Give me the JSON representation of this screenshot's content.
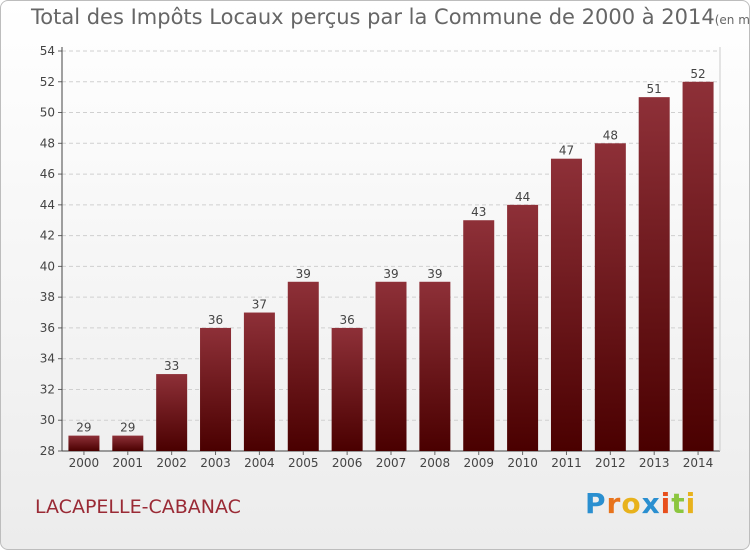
{
  "header": {
    "title": "Total des Impôts Locaux perçus par la Commune de 2000 à 2014",
    "unit": "(en milliers d'€)"
  },
  "footer": {
    "commune": "LACAPELLE-CABANAC",
    "brand_letters": [
      "P",
      "r",
      "o",
      "x",
      "i",
      "t",
      "i"
    ],
    "brand_colors": [
      "#2a8fd0",
      "#e8731c",
      "#e8b21c",
      "#2a8fd0",
      "#e84f1c",
      "#8cc63f",
      "#e8b21c"
    ]
  },
  "chart_data": {
    "type": "bar",
    "title": "Total des Impôts Locaux perçus par la Commune de 2000 à 2014",
    "unit": "(en milliers d'€)",
    "xlabel": "",
    "ylabel": "",
    "categories": [
      "2000",
      "2001",
      "2002",
      "2003",
      "2004",
      "2005",
      "2006",
      "2007",
      "2008",
      "2009",
      "2010",
      "2011",
      "2012",
      "2013",
      "2014"
    ],
    "values": [
      29,
      29,
      33,
      36,
      37,
      39,
      36,
      39,
      39,
      43,
      44,
      47,
      48,
      51,
      52
    ],
    "ylim": [
      28,
      54
    ],
    "yticks": [
      28,
      30,
      32,
      34,
      36,
      38,
      40,
      42,
      44,
      46,
      48,
      50,
      52,
      54
    ],
    "grid": true,
    "bar_color_top": "#8e3038",
    "bar_color_bottom": "#4a0000"
  }
}
